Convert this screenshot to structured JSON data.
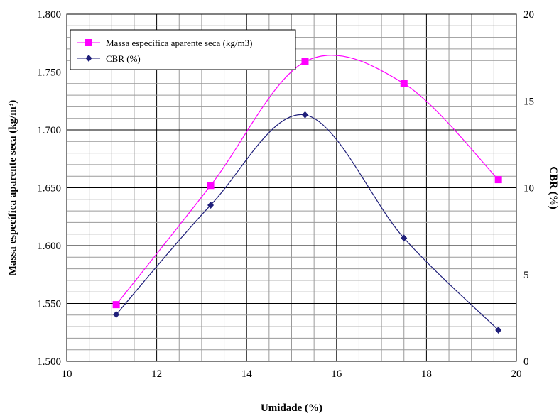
{
  "chart_data": {
    "type": "line",
    "x_axis": {
      "label": "Umidade (%)",
      "range": [
        10,
        20
      ],
      "ticks": [
        "10",
        "12",
        "14",
        "16",
        "18",
        "20"
      ]
    },
    "y_left_axis": {
      "label": "Massa específica aparente seca (kg/m³)",
      "range": [
        1.5,
        1.8
      ],
      "ticks": [
        "1.500",
        "1.550",
        "1.600",
        "1.650",
        "1.700",
        "1.750",
        "1.800"
      ]
    },
    "y_right_axis": {
      "label": "CBR (%)",
      "range": [
        0,
        20
      ],
      "ticks": [
        "0",
        "5",
        "10",
        "15",
        "20"
      ]
    },
    "grid": true,
    "legend_position": "top-left",
    "series": [
      {
        "name": "Massa específica aparente seca (kg/m3)",
        "axis": "left",
        "marker": "square",
        "color": "#FF00FF",
        "points": [
          [
            11.1,
            1.549
          ],
          [
            13.2,
            1.652
          ],
          [
            15.3,
            1.759
          ],
          [
            17.5,
            1.74
          ],
          [
            19.6,
            1.657
          ]
        ]
      },
      {
        "name": "CBR (%)",
        "axis": "right",
        "marker": "diamond",
        "color": "#1F1F7A",
        "points": [
          [
            11.1,
            2.7
          ],
          [
            13.2,
            9.0
          ],
          [
            15.3,
            14.2
          ],
          [
            17.5,
            7.1
          ],
          [
            19.6,
            1.8
          ]
        ]
      }
    ]
  }
}
